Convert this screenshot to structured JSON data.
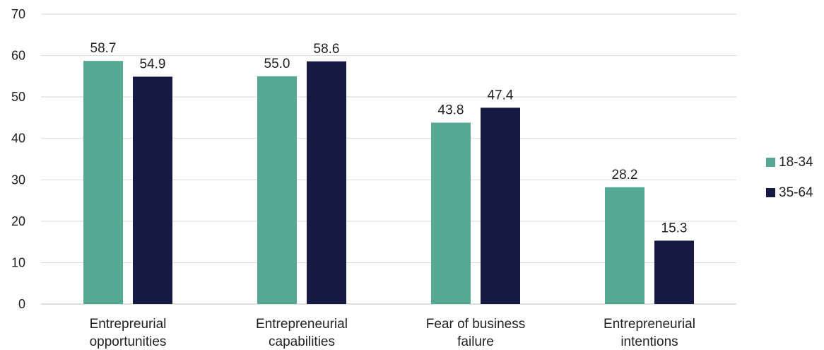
{
  "chart_data": {
    "type": "bar",
    "categories": [
      [
        "Entrepreurial",
        "opportunities"
      ],
      [
        "Entrepreneurial",
        "capabilities"
      ],
      [
        "Fear of business",
        "failure"
      ],
      [
        "Entrepreneurial",
        "intentions"
      ]
    ],
    "series": [
      {
        "name": "18-34",
        "color": "#55a892",
        "values": [
          58.7,
          55.0,
          43.8,
          28.2
        ],
        "labels": [
          "58.7",
          "55.0",
          "43.8",
          "28.2"
        ]
      },
      {
        "name": "35-64",
        "color": "#161942",
        "values": [
          54.9,
          58.6,
          47.4,
          15.3
        ],
        "labels": [
          "54.9",
          "58.6",
          "47.4",
          "15.3"
        ]
      }
    ],
    "title": "",
    "xlabel": "",
    "ylabel": "",
    "ylim": [
      0,
      70
    ],
    "yticks": [
      "0",
      "10",
      "20",
      "30",
      "40",
      "50",
      "60",
      "70"
    ],
    "grid": true,
    "legend_position": "right"
  }
}
